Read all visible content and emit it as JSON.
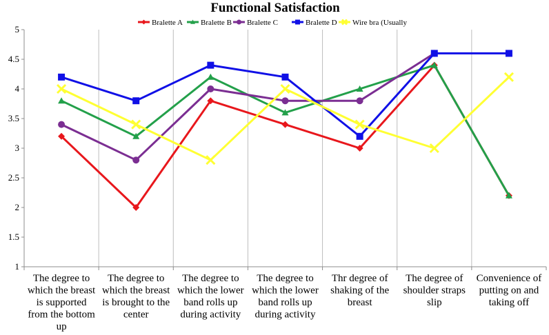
{
  "chart_data": {
    "type": "line",
    "title": "Functional Satisfaction",
    "xlabel": "",
    "ylabel": "",
    "ylim": [
      1,
      5
    ],
    "yticks": [
      "1",
      "1.5",
      "2",
      "2.5",
      "3",
      "3.5",
      "4",
      "4.5",
      "5"
    ],
    "grid": "vertical",
    "legend_position": "top",
    "categories": [
      [
        "The degree to",
        "which the breast",
        "is supported",
        "from the bottom",
        "up"
      ],
      [
        "The degree to",
        "which the breast",
        "is brought to the",
        "center"
      ],
      [
        "The degree to",
        "which the lower",
        "band rolls up",
        "during activity"
      ],
      [
        "The degree to",
        "which the lower",
        "band rolls up",
        "during activity"
      ],
      [
        "Thr degree of",
        "shaking of the",
        "breast"
      ],
      [
        "The degree of",
        "shoulder straps",
        "slip"
      ],
      [
        "Convenience of",
        "putting on and",
        "taking off"
      ]
    ],
    "series": [
      {
        "name": "Bralette A",
        "color": "#e8171c",
        "marker": "diamond",
        "values": [
          3.2,
          2.0,
          3.8,
          3.4,
          3.0,
          4.4,
          2.2
        ]
      },
      {
        "name": "Bralette B",
        "color": "#23a04a",
        "marker": "triangle",
        "values": [
          3.8,
          3.2,
          4.2,
          3.6,
          4.0,
          4.4,
          2.2
        ]
      },
      {
        "name": "Bralette C",
        "color": "#7b2e92",
        "marker": "circle",
        "values": [
          3.4,
          2.8,
          4.0,
          3.8,
          3.8,
          4.6,
          null
        ]
      },
      {
        "name": "Bralette D",
        "color": "#1010e6",
        "marker": "square",
        "values": [
          4.2,
          3.8,
          4.4,
          4.2,
          3.2,
          4.6,
          4.6
        ]
      },
      {
        "name": "Wire bra (Usually",
        "color": "#ffff33",
        "marker": "x",
        "values": [
          4.0,
          3.4,
          2.8,
          4.0,
          3.4,
          3.0,
          4.2
        ]
      }
    ]
  }
}
